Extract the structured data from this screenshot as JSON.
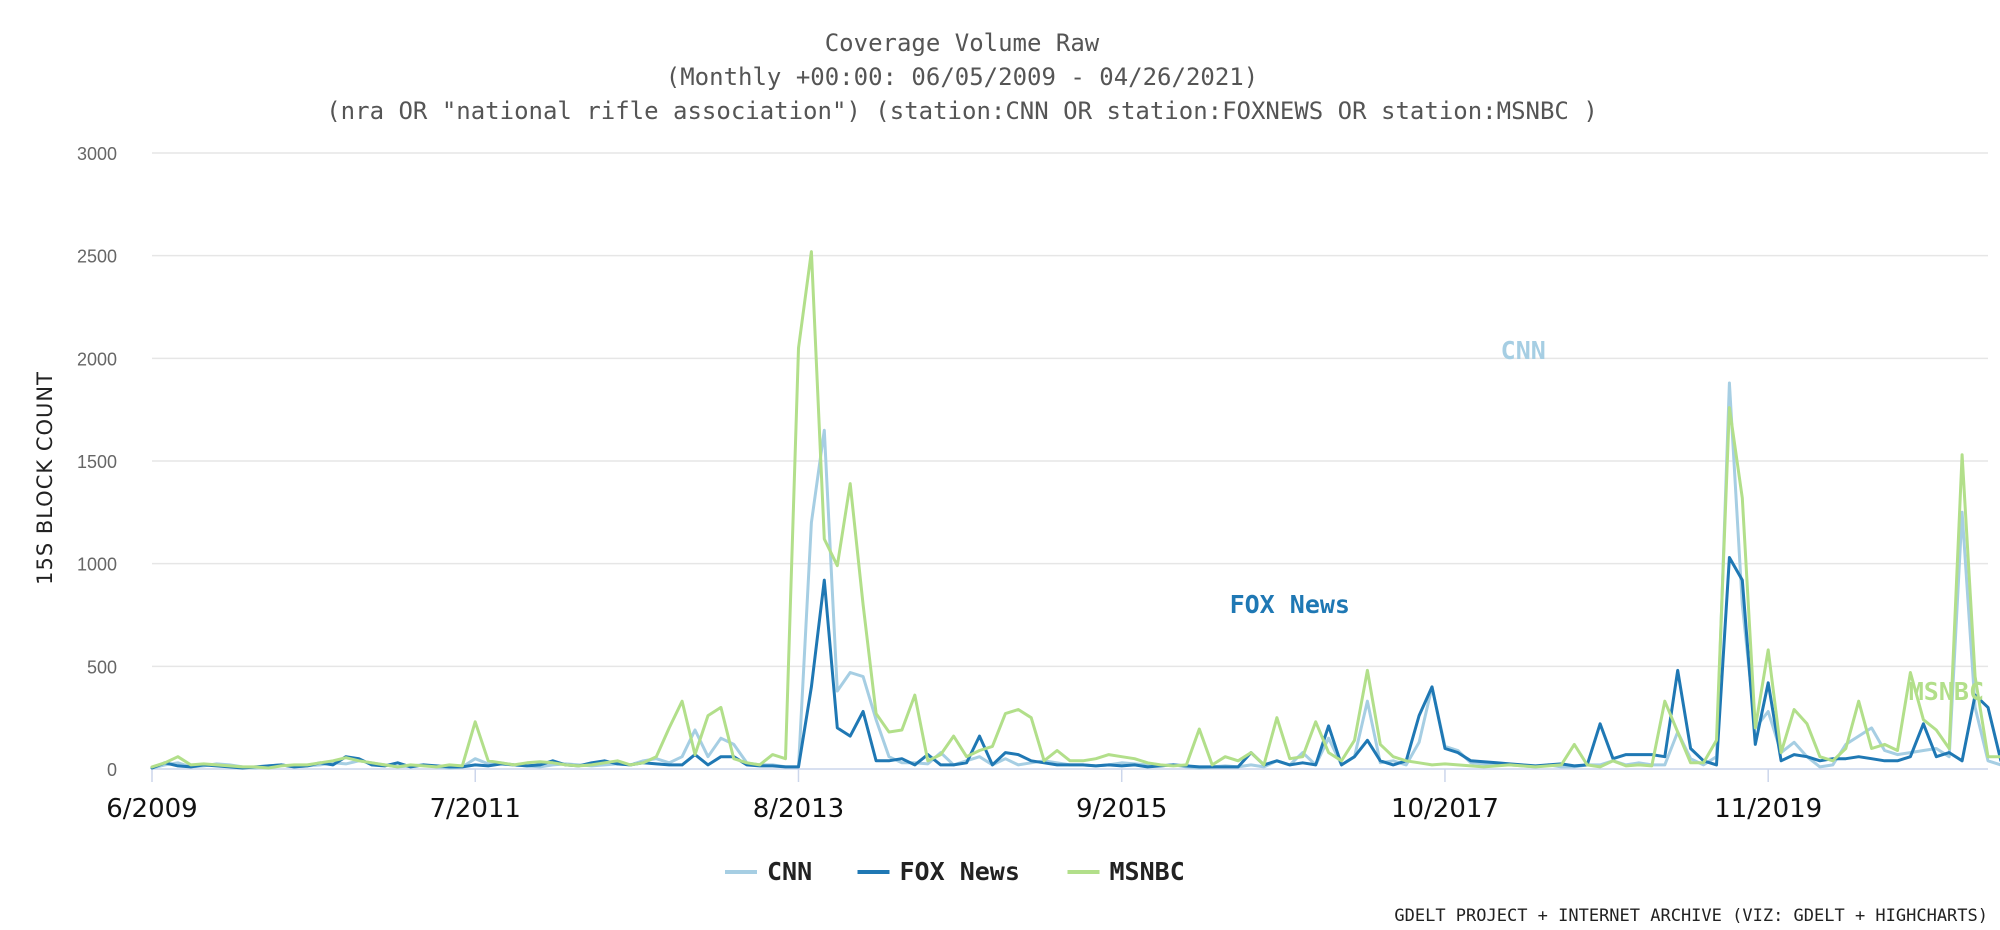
{
  "chart_data": {
    "type": "line",
    "title": "Coverage Volume Raw",
    "subtitle_lines": [
      "(Monthly +00:00: 06/05/2009 - 04/26/2021)",
      "(nra OR \"national rifle association\") (station:CNN OR station:FOXNEWS OR station:MSNBC )"
    ],
    "ylabel": "15S BLOCK COUNT",
    "ylim": [
      0,
      3000
    ],
    "yticks": [
      0,
      500,
      1000,
      1500,
      2000,
      2500,
      3000
    ],
    "ytick_labels": [
      "0",
      "500",
      "1000",
      "1500",
      "2000",
      "2500",
      "3000"
    ],
    "xrange": [
      "2009-06",
      "2021-04"
    ],
    "xticks": [
      {
        "date": "2009-06",
        "label": "6/2009"
      },
      {
        "date": "2011-07",
        "label": "7/2011"
      },
      {
        "date": "2013-08",
        "label": "8/2013"
      },
      {
        "date": "2015-09",
        "label": "9/2015"
      },
      {
        "date": "2017-10",
        "label": "10/2017"
      },
      {
        "date": "2019-11",
        "label": "11/2019"
      }
    ],
    "grid": true,
    "legend_position": "bottom-center",
    "series": [
      {
        "name": "CNN",
        "color": "#a6cee3",
        "label_date": "2018-02",
        "values": [
          5,
          20,
          30,
          10,
          15,
          25,
          20,
          10,
          5,
          15,
          20,
          10,
          15,
          20,
          30,
          25,
          40,
          30,
          20,
          10,
          15,
          20,
          10,
          5,
          10,
          50,
          25,
          30,
          20,
          15,
          10,
          20,
          25,
          20,
          15,
          20,
          25,
          20,
          40,
          50,
          30,
          60,
          190,
          60,
          150,
          120,
          30,
          20,
          20,
          10,
          10,
          1200,
          1650,
          380,
          470,
          450,
          240,
          60,
          30,
          30,
          25,
          80,
          20,
          40,
          60,
          20,
          50,
          20,
          30,
          40,
          30,
          20,
          20,
          15,
          20,
          30,
          25,
          20,
          15,
          20,
          10,
          5,
          10,
          15,
          10,
          20,
          10,
          40,
          20,
          80,
          20,
          150,
          20,
          60,
          330,
          30,
          40,
          20,
          130,
          400,
          110,
          90,
          30,
          25,
          20,
          20,
          15,
          10,
          20,
          10,
          10,
          20,
          20,
          40,
          20,
          30,
          20,
          20,
          180,
          50,
          20,
          60,
          1880,
          800,
          200,
          280,
          80,
          130,
          60,
          10,
          20,
          120,
          160,
          200,
          90,
          70,
          80,
          90,
          100,
          60,
          1250,
          300,
          40,
          20,
          20,
          160,
          30,
          20,
          20,
          10,
          15,
          20,
          20,
          10,
          90,
          20,
          20,
          10,
          10,
          20,
          40,
          50,
          80,
          60,
          60
        ]
      },
      {
        "name": "FOX News",
        "color": "#1f78b4",
        "label_date": "2016-10",
        "values": [
          5,
          30,
          15,
          10,
          20,
          15,
          10,
          5,
          10,
          15,
          20,
          10,
          15,
          30,
          20,
          60,
          50,
          20,
          15,
          30,
          10,
          20,
          15,
          10,
          10,
          20,
          15,
          25,
          20,
          15,
          20,
          40,
          20,
          15,
          30,
          40,
          25,
          20,
          30,
          25,
          20,
          20,
          70,
          20,
          60,
          60,
          20,
          15,
          15,
          10,
          10,
          400,
          920,
          200,
          160,
          280,
          40,
          40,
          50,
          20,
          70,
          20,
          20,
          30,
          160,
          20,
          80,
          70,
          40,
          30,
          20,
          20,
          20,
          15,
          20,
          15,
          20,
          10,
          15,
          20,
          15,
          10,
          10,
          10,
          10,
          80,
          20,
          40,
          20,
          30,
          20,
          210,
          20,
          60,
          140,
          40,
          20,
          40,
          260,
          400,
          100,
          80,
          40,
          35,
          30,
          25,
          20,
          15,
          20,
          25,
          15,
          20,
          220,
          50,
          70,
          70,
          70,
          60,
          480,
          100,
          40,
          20,
          1030,
          920,
          120,
          420,
          40,
          70,
          60,
          40,
          50,
          50,
          60,
          50,
          40,
          40,
          60,
          220,
          60,
          80,
          40,
          360,
          300,
          40,
          30,
          20,
          20,
          30,
          20,
          15,
          10,
          10,
          15,
          10,
          350,
          20,
          15,
          10,
          10,
          15,
          40,
          20,
          30,
          35,
          20
        ]
      },
      {
        "name": "MSNBC",
        "color": "#b2df8a",
        "label_date": "2020-12",
        "values": [
          10,
          30,
          60,
          20,
          25,
          20,
          15,
          10,
          10,
          5,
          15,
          20,
          20,
          30,
          40,
          55,
          40,
          30,
          20,
          10,
          20,
          15,
          10,
          20,
          15,
          230,
          40,
          30,
          20,
          30,
          35,
          30,
          20,
          15,
          20,
          30,
          40,
          20,
          30,
          60,
          200,
          330,
          70,
          260,
          300,
          50,
          30,
          20,
          70,
          50,
          2050,
          2520,
          1120,
          990,
          1390,
          800,
          270,
          180,
          190,
          360,
          40,
          70,
          160,
          60,
          90,
          110,
          270,
          290,
          250,
          40,
          90,
          40,
          40,
          50,
          70,
          60,
          50,
          30,
          20,
          15,
          20,
          195,
          20,
          60,
          40,
          80,
          20,
          250,
          50,
          60,
          230,
          80,
          40,
          140,
          480,
          120,
          60,
          40,
          30,
          20,
          25,
          20,
          15,
          10,
          15,
          20,
          15,
          10,
          15,
          20,
          120,
          20,
          10,
          40,
          15,
          20,
          15,
          330,
          180,
          30,
          30,
          140,
          1760,
          1320,
          200,
          580,
          80,
          290,
          220,
          60,
          40,
          100,
          330,
          100,
          120,
          90,
          470,
          240,
          190,
          100,
          1530,
          450,
          60,
          60,
          30,
          220,
          60,
          80,
          30,
          15,
          10,
          10,
          20,
          15,
          380,
          60,
          20,
          10,
          10,
          20,
          20,
          40,
          150,
          180,
          190
        ]
      }
    ]
  },
  "credit": "GDELT PROJECT + INTERNET ARCHIVE (VIZ: GDELT + HIGHCHARTS)"
}
